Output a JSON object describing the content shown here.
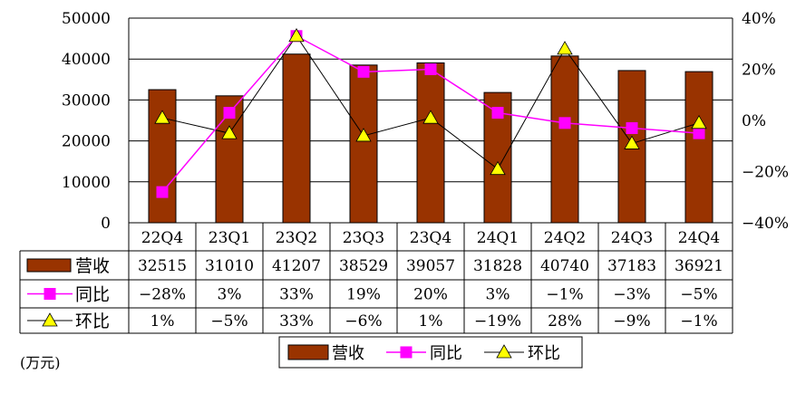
{
  "chart_data": {
    "type": "bar",
    "categories": [
      "22Q4",
      "23Q1",
      "23Q2",
      "23Q3",
      "23Q4",
      "24Q1",
      "24Q2",
      "24Q3",
      "24Q4"
    ],
    "series": [
      {
        "name": "营收",
        "type": "bar",
        "axis": "left",
        "color": "#993300",
        "values": [
          32515,
          31010,
          41207,
          38529,
          39057,
          31828,
          40740,
          37183,
          36921
        ],
        "labels": [
          "32515",
          "31010",
          "41207",
          "38529",
          "39057",
          "31828",
          "40740",
          "37183",
          "36921"
        ]
      },
      {
        "name": "同比",
        "type": "line",
        "axis": "right",
        "color": "#FF00FF",
        "marker": "square",
        "values": [
          -28,
          3,
          33,
          19,
          20,
          3,
          -1,
          -3,
          -5
        ],
        "labels": [
          "−28%",
          "3%",
          "33%",
          "19%",
          "20%",
          "3%",
          "−1%",
          "−3%",
          "−5%"
        ]
      },
      {
        "name": "环比",
        "type": "line",
        "axis": "right",
        "color": "#000000",
        "marker": "triangle",
        "marker_fill": "#FFFF00",
        "values": [
          1,
          -5,
          33,
          -6,
          1,
          -19,
          28,
          -9,
          -1
        ],
        "labels": [
          "1%",
          "−5%",
          "33%",
          "−6%",
          "1%",
          "−19%",
          "28%",
          "−9%",
          "−1%"
        ]
      }
    ],
    "y_left": {
      "lim": [
        0,
        50000
      ],
      "ticks": [
        "0",
        "10000",
        "20000",
        "30000",
        "40000",
        "50000"
      ]
    },
    "y_right": {
      "lim": [
        -40,
        40
      ],
      "ticks": [
        "−40%",
        "−20%",
        "0%",
        "20%",
        "40%"
      ]
    },
    "unit_label": "(万元)",
    "grid": true,
    "legend": "bottom",
    "data_table": true
  }
}
